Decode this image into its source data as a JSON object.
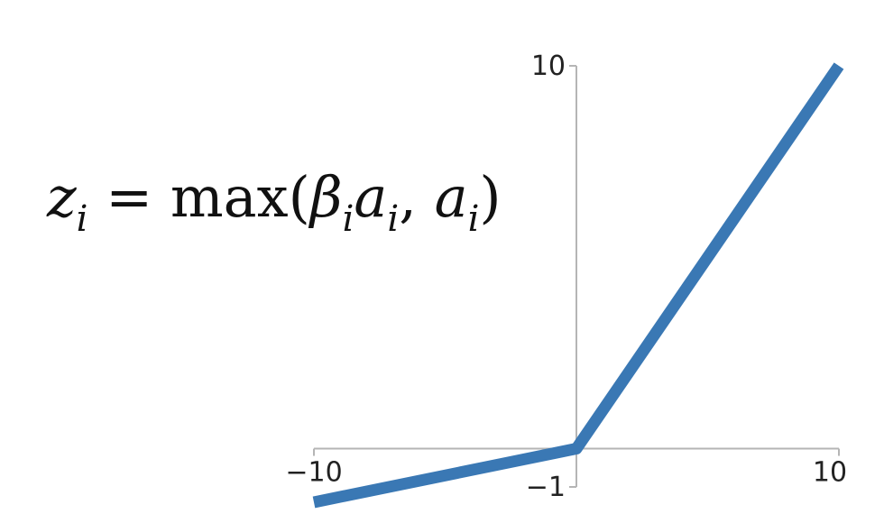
{
  "formula": {
    "lhs_var": "z",
    "lhs_sub": "i",
    "equals": "=",
    "fn": "max(",
    "beta": "β",
    "beta_sub": "i",
    "a1": "a",
    "a1_sub": "i",
    "comma": ",",
    "a2": "a",
    "a2_sub": "i",
    "close": ")"
  },
  "chart_data": {
    "type": "line",
    "title": "",
    "xlabel": "",
    "ylabel": "",
    "xlim": [
      -10,
      10
    ],
    "ylim": [
      -1,
      10
    ],
    "x_ticks": [
      {
        "value": -10,
        "label": "−10"
      },
      {
        "value": 10,
        "label": "10"
      }
    ],
    "y_ticks": [
      {
        "value": 10,
        "label": "10"
      },
      {
        "value": -1,
        "label": "−1"
      }
    ],
    "grid": false,
    "series": [
      {
        "color": "#3a78b4",
        "x": [
          -10,
          0,
          10
        ],
        "y": [
          -1.4,
          0,
          10
        ]
      }
    ]
  }
}
